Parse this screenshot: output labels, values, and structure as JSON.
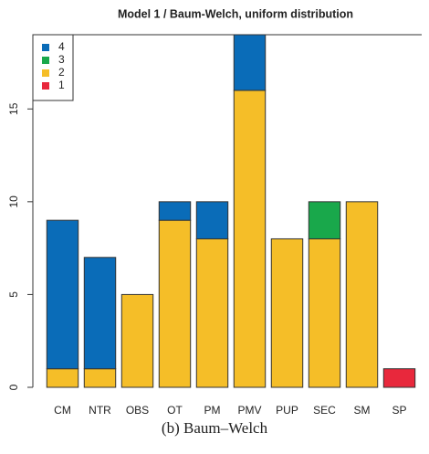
{
  "chart_data": {
    "type": "stacked-bar",
    "title": "Model 1 / Baum-Welch, uniform distribution",
    "caption": "(b) Baum–Welch",
    "categories": [
      "CM",
      "NTR",
      "OBS",
      "OT",
      "PM",
      "PMV",
      "PUP",
      "SEC",
      "SM",
      "SP"
    ],
    "series": [
      {
        "name": "1",
        "color": "#e8283c",
        "values": [
          0,
          0,
          0,
          0,
          0,
          0,
          0,
          0,
          0,
          1
        ]
      },
      {
        "name": "2",
        "color": "#f5be28",
        "values": [
          1,
          1,
          5,
          9,
          8,
          16,
          8,
          8,
          10,
          0
        ]
      },
      {
        "name": "3",
        "color": "#19a84b",
        "values": [
          0,
          0,
          0,
          0,
          0,
          0,
          0,
          2,
          0,
          0
        ]
      },
      {
        "name": "4",
        "color": "#0a6cb8",
        "values": [
          8,
          6,
          0,
          1,
          2,
          3,
          0,
          0,
          0,
          0
        ]
      }
    ],
    "ylim": [
      0,
      19
    ],
    "yticks": [
      0,
      5,
      10,
      15
    ],
    "legend": "top-left"
  }
}
